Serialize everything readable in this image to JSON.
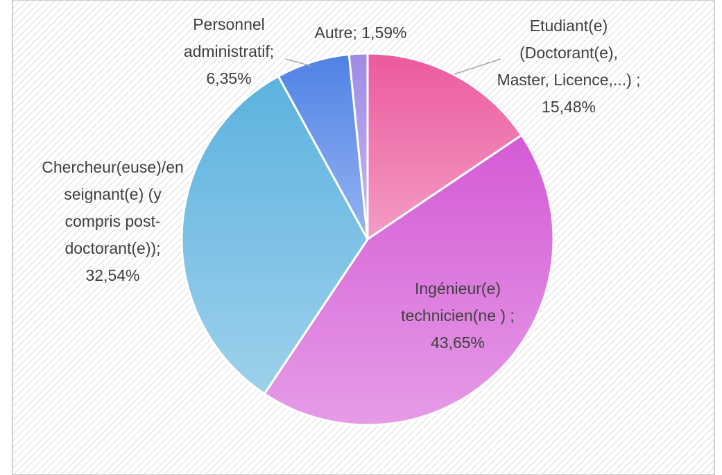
{
  "chart_data": {
    "type": "pie",
    "categories": [
      "Etudiant(e) (Doctorant(e), Master, Licence,...) ;",
      "Ingénieur(e) technicien(ne ) ;",
      "Chercheur(euse)/enseignant(e) (y compris post-doctorant(e));",
      "Personnel administratif;",
      "Autre;"
    ],
    "values": [
      15.48,
      43.65,
      32.54,
      6.35,
      1.59
    ],
    "value_labels": [
      "15,48%",
      "43,65%",
      "32,54%",
      "6,35%",
      "1,59%"
    ],
    "colors": [
      "#ec5a9e",
      "#d45ad6",
      "#5cb2df",
      "#4f82e6",
      "#a08ae6"
    ]
  }
}
